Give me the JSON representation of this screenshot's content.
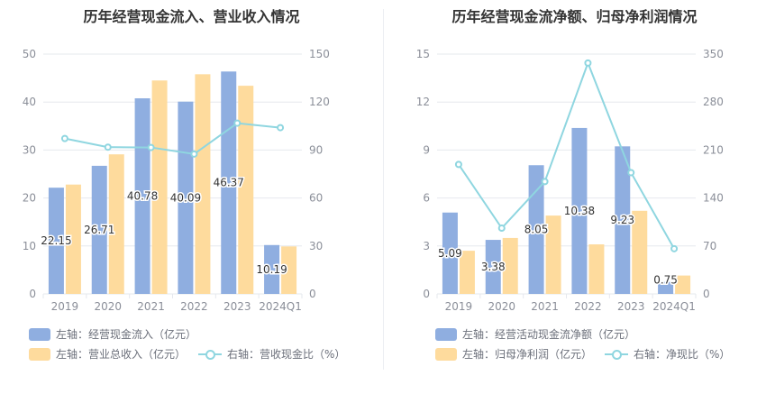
{
  "colors": {
    "bar1": "#8faee0",
    "bar2": "#fedb9d",
    "line": "#8fd6e0",
    "grid": "#e6e8ee",
    "tick": "#8b8f99"
  },
  "chart_data": [
    {
      "type": "bar",
      "title": "历年经营现金流入、营业收入情况",
      "categories": [
        "2019",
        "2020",
        "2021",
        "2022",
        "2023",
        "2024Q1"
      ],
      "left_axis": {
        "ticks": [
          "0",
          "10",
          "20",
          "30",
          "40",
          "50"
        ],
        "ylim": [
          0,
          50
        ]
      },
      "right_axis": {
        "ticks": [
          "0",
          "30",
          "60",
          "90",
          "120",
          "150"
        ],
        "ylim": [
          0,
          150
        ]
      },
      "series": [
        {
          "name": "左轴：经营现金流入（亿元）",
          "type": "bar",
          "axis": "left",
          "values": [
            22.15,
            26.71,
            40.78,
            40.09,
            46.37,
            10.19
          ],
          "labels": [
            "22.15",
            "26.71",
            "40.78",
            "40.09",
            "46.37",
            "10.19"
          ]
        },
        {
          "name": "左轴：营业总收入（亿元）",
          "type": "bar",
          "axis": "left",
          "values": [
            22.8,
            29.1,
            44.5,
            45.8,
            43.4,
            9.9
          ]
        },
        {
          "name": "右轴：营收现金比（%）",
          "type": "line",
          "axis": "right",
          "values": [
            97.2,
            91.8,
            91.6,
            87.5,
            106.8,
            104.0
          ]
        }
      ],
      "grid": true,
      "legend_position": "bottom"
    },
    {
      "type": "bar",
      "title": "历年经营现金流净额、归母净利润情况",
      "categories": [
        "2019",
        "2020",
        "2021",
        "2022",
        "2023",
        "2024Q1"
      ],
      "left_axis": {
        "ticks": [
          "0",
          "3",
          "6",
          "9",
          "12",
          "15"
        ],
        "ylim": [
          0,
          15
        ]
      },
      "right_axis": {
        "ticks": [
          "0",
          "70",
          "140",
          "210",
          "280",
          "350"
        ],
        "ylim": [
          0,
          350
        ]
      },
      "series": [
        {
          "name": "左轴：经营活动现金流净额（亿元）",
          "type": "bar",
          "axis": "left",
          "values": [
            5.09,
            3.38,
            8.05,
            10.38,
            9.23,
            0.75
          ],
          "labels": [
            "5.09",
            "3.38",
            "8.05",
            "10.38",
            "9.23",
            "0.75"
          ]
        },
        {
          "name": "左轴：归母净利润（亿元）",
          "type": "bar",
          "axis": "left",
          "values": [
            2.7,
            3.5,
            4.9,
            3.1,
            5.2,
            1.15
          ]
        },
        {
          "name": "右轴：净现比（%）",
          "type": "line",
          "axis": "right",
          "values": [
            189,
            96,
            164,
            337,
            177,
            66
          ]
        }
      ],
      "grid": true,
      "legend_position": "bottom"
    }
  ]
}
